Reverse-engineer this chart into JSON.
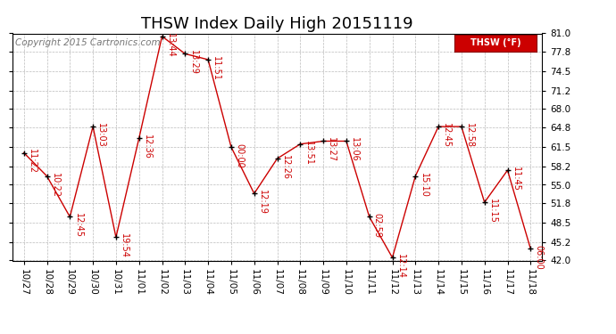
{
  "title": "THSW Index Daily High 20151119",
  "copyright": "Copyright 2015 Cartronics.com",
  "legend_label": "THSW (°F)",
  "background_color": "#ffffff",
  "line_color": "#cc0000",
  "marker_color": "#000000",
  "grid_color": "#bbbbbb",
  "ylim": [
    42.0,
    81.0
  ],
  "yticks": [
    42.0,
    45.2,
    48.5,
    51.8,
    55.0,
    58.2,
    61.5,
    64.8,
    68.0,
    71.2,
    74.5,
    77.8,
    81.0
  ],
  "dates": [
    "10/27",
    "10/28",
    "10/29",
    "10/30",
    "10/31",
    "11/01",
    "11/02",
    "11/03",
    "11/04",
    "11/05",
    "11/06",
    "11/07",
    "11/08",
    "11/09",
    "11/10",
    "11/11",
    "11/12",
    "11/13",
    "11/14",
    "11/15",
    "11/16",
    "11/17",
    "11/18"
  ],
  "values": [
    60.5,
    56.5,
    49.5,
    65.0,
    46.0,
    63.0,
    80.5,
    77.5,
    76.5,
    61.5,
    53.5,
    59.5,
    62.0,
    62.5,
    62.5,
    49.5,
    42.5,
    56.5,
    65.0,
    65.0,
    52.0,
    57.5,
    44.0
  ],
  "annotations": [
    "11:22",
    "10:22",
    "12:45",
    "13:03",
    "19:54",
    "12:36",
    "13:44",
    "13:29",
    "11:51",
    "00:00",
    "12:19",
    "12:26",
    "13:51",
    "13:27",
    "13:06",
    "02:59",
    "12:14",
    "15:10",
    "12:45",
    "12:58",
    "11:15",
    "11:45",
    "06:00"
  ],
  "title_fontsize": 13,
  "annotation_fontsize": 7,
  "tick_fontsize": 7.5,
  "copyright_fontsize": 7.5
}
